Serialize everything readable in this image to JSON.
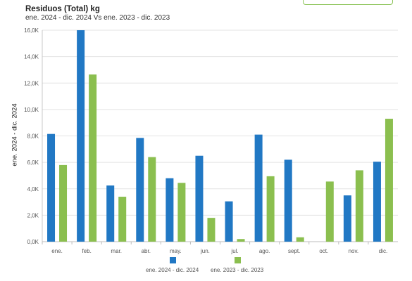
{
  "chart_data": {
    "type": "bar",
    "title": "Residuos (Total) kg",
    "subtitle": "ene. 2024 - dic. 2024 Vs ene. 2023 - dic. 2023",
    "ylabel": "ene. 2024 - dic. 2024",
    "xlabel": "",
    "ylim": [
      0,
      16000
    ],
    "yticks": [
      {
        "value": 0,
        "label": "0,0K"
      },
      {
        "value": 2000,
        "label": "2,0K"
      },
      {
        "value": 4000,
        "label": "4,0K"
      },
      {
        "value": 6000,
        "label": "6,0K"
      },
      {
        "value": 8000,
        "label": "8,0K"
      },
      {
        "value": 10000,
        "label": "10,0K"
      },
      {
        "value": 12000,
        "label": "12,0K"
      },
      {
        "value": 14000,
        "label": "14,0K"
      },
      {
        "value": 16000,
        "label": "16,0K"
      }
    ],
    "grid": true,
    "legend_position": "bottom",
    "categories": [
      "ene.",
      "feb.",
      "mar.",
      "abr.",
      "may.",
      "jun.",
      "jul.",
      "ago.",
      "sept.",
      "oct.",
      "nov.",
      "dic."
    ],
    "series": [
      {
        "name": "ene. 2024 - dic. 2024",
        "color": "#2178c4",
        "values": [
          8150,
          16000,
          4250,
          7850,
          4800,
          6500,
          3050,
          8100,
          6200,
          null,
          3500,
          6050
        ]
      },
      {
        "name": "ene. 2023 - dic. 2023",
        "color": "#8bbf4f",
        "values": [
          5800,
          12650,
          3400,
          6400,
          4450,
          1800,
          200,
          4950,
          330,
          4550,
          5400,
          9300
        ]
      }
    ]
  }
}
